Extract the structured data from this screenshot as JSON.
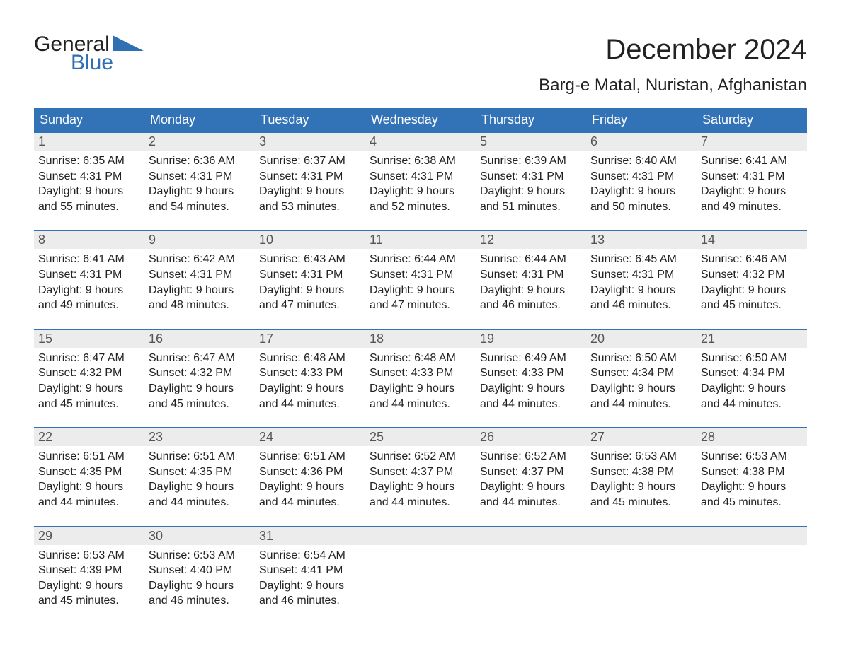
{
  "brand": {
    "word1": "General",
    "word2": "Blue",
    "flag_color": "#2f6fb3",
    "word1_color": "#222222",
    "word2_color": "#2f6fb3"
  },
  "title": "December 2024",
  "location": "Barg-e Matal, Nuristan, Afghanistan",
  "colors": {
    "header_bg": "#3272b6",
    "header_text": "#ffffff",
    "week_border": "#3272b6",
    "daynum_bg": "#ececec",
    "daynum_text": "#555555",
    "body_text": "#222222",
    "page_bg": "#ffffff"
  },
  "day_names": [
    "Sunday",
    "Monday",
    "Tuesday",
    "Wednesday",
    "Thursday",
    "Friday",
    "Saturday"
  ],
  "weeks": [
    [
      {
        "n": "1",
        "sr": "6:35 AM",
        "ss": "4:31 PM",
        "dl": "9 hours and 55 minutes."
      },
      {
        "n": "2",
        "sr": "6:36 AM",
        "ss": "4:31 PM",
        "dl": "9 hours and 54 minutes."
      },
      {
        "n": "3",
        "sr": "6:37 AM",
        "ss": "4:31 PM",
        "dl": "9 hours and 53 minutes."
      },
      {
        "n": "4",
        "sr": "6:38 AM",
        "ss": "4:31 PM",
        "dl": "9 hours and 52 minutes."
      },
      {
        "n": "5",
        "sr": "6:39 AM",
        "ss": "4:31 PM",
        "dl": "9 hours and 51 minutes."
      },
      {
        "n": "6",
        "sr": "6:40 AM",
        "ss": "4:31 PM",
        "dl": "9 hours and 50 minutes."
      },
      {
        "n": "7",
        "sr": "6:41 AM",
        "ss": "4:31 PM",
        "dl": "9 hours and 49 minutes."
      }
    ],
    [
      {
        "n": "8",
        "sr": "6:41 AM",
        "ss": "4:31 PM",
        "dl": "9 hours and 49 minutes."
      },
      {
        "n": "9",
        "sr": "6:42 AM",
        "ss": "4:31 PM",
        "dl": "9 hours and 48 minutes."
      },
      {
        "n": "10",
        "sr": "6:43 AM",
        "ss": "4:31 PM",
        "dl": "9 hours and 47 minutes."
      },
      {
        "n": "11",
        "sr": "6:44 AM",
        "ss": "4:31 PM",
        "dl": "9 hours and 47 minutes."
      },
      {
        "n": "12",
        "sr": "6:44 AM",
        "ss": "4:31 PM",
        "dl": "9 hours and 46 minutes."
      },
      {
        "n": "13",
        "sr": "6:45 AM",
        "ss": "4:31 PM",
        "dl": "9 hours and 46 minutes."
      },
      {
        "n": "14",
        "sr": "6:46 AM",
        "ss": "4:32 PM",
        "dl": "9 hours and 45 minutes."
      }
    ],
    [
      {
        "n": "15",
        "sr": "6:47 AM",
        "ss": "4:32 PM",
        "dl": "9 hours and 45 minutes."
      },
      {
        "n": "16",
        "sr": "6:47 AM",
        "ss": "4:32 PM",
        "dl": "9 hours and 45 minutes."
      },
      {
        "n": "17",
        "sr": "6:48 AM",
        "ss": "4:33 PM",
        "dl": "9 hours and 44 minutes."
      },
      {
        "n": "18",
        "sr": "6:48 AM",
        "ss": "4:33 PM",
        "dl": "9 hours and 44 minutes."
      },
      {
        "n": "19",
        "sr": "6:49 AM",
        "ss": "4:33 PM",
        "dl": "9 hours and 44 minutes."
      },
      {
        "n": "20",
        "sr": "6:50 AM",
        "ss": "4:34 PM",
        "dl": "9 hours and 44 minutes."
      },
      {
        "n": "21",
        "sr": "6:50 AM",
        "ss": "4:34 PM",
        "dl": "9 hours and 44 minutes."
      }
    ],
    [
      {
        "n": "22",
        "sr": "6:51 AM",
        "ss": "4:35 PM",
        "dl": "9 hours and 44 minutes."
      },
      {
        "n": "23",
        "sr": "6:51 AM",
        "ss": "4:35 PM",
        "dl": "9 hours and 44 minutes."
      },
      {
        "n": "24",
        "sr": "6:51 AM",
        "ss": "4:36 PM",
        "dl": "9 hours and 44 minutes."
      },
      {
        "n": "25",
        "sr": "6:52 AM",
        "ss": "4:37 PM",
        "dl": "9 hours and 44 minutes."
      },
      {
        "n": "26",
        "sr": "6:52 AM",
        "ss": "4:37 PM",
        "dl": "9 hours and 44 minutes."
      },
      {
        "n": "27",
        "sr": "6:53 AM",
        "ss": "4:38 PM",
        "dl": "9 hours and 45 minutes."
      },
      {
        "n": "28",
        "sr": "6:53 AM",
        "ss": "4:38 PM",
        "dl": "9 hours and 45 minutes."
      }
    ],
    [
      {
        "n": "29",
        "sr": "6:53 AM",
        "ss": "4:39 PM",
        "dl": "9 hours and 45 minutes."
      },
      {
        "n": "30",
        "sr": "6:53 AM",
        "ss": "4:40 PM",
        "dl": "9 hours and 46 minutes."
      },
      {
        "n": "31",
        "sr": "6:54 AM",
        "ss": "4:41 PM",
        "dl": "9 hours and 46 minutes."
      },
      null,
      null,
      null,
      null
    ]
  ],
  "labels": {
    "sunrise": "Sunrise: ",
    "sunset": "Sunset: ",
    "daylight": "Daylight: "
  }
}
